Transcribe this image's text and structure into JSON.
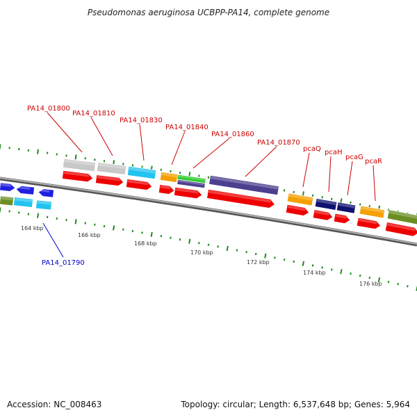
{
  "title": "Pseudomonas aeruginosa UCBPP-PA14, complete genome",
  "footer": {
    "accession": "Accession: NC_008463",
    "summary": "Topology: circular; Length: 6,537,648 bp; Genes: 5,964"
  },
  "colors": {
    "background": "#ffffff",
    "backbone": "#8a8a8a",
    "tick": "#1f8a1f",
    "label_top": "#cc0000",
    "label_bottom": "#0000cc",
    "red": "#ee0000",
    "gray": "#c8c8c8",
    "cyan": "#22c3f0",
    "orange": "#f5a000",
    "green": "#33cc33",
    "purple": "#4b3f8f",
    "navy": "#101070",
    "blue": "#2020e0",
    "olive": "#6b8e23"
  },
  "scale_labels": [
    "164 kbp",
    "166 kbp",
    "168 kbp",
    "170 kbp",
    "172 kbp",
    "174 kbp",
    "176 kbp"
  ],
  "gene_labels": [
    {
      "text": "PA14_01790",
      "side": "bottom"
    },
    {
      "text": "PA14_01800",
      "side": "top"
    },
    {
      "text": "PA14_01810",
      "side": "top"
    },
    {
      "text": "PA14_01830",
      "side": "top"
    },
    {
      "text": "PA14_01840",
      "side": "top"
    },
    {
      "text": "PA14_01860",
      "side": "top"
    },
    {
      "text": "PA14_01870",
      "side": "top"
    },
    {
      "text": "pcaQ",
      "side": "top"
    },
    {
      "text": "pcaH",
      "side": "top"
    },
    {
      "text": "pcaG",
      "side": "top"
    },
    {
      "text": "pcaR",
      "side": "top"
    }
  ]
}
